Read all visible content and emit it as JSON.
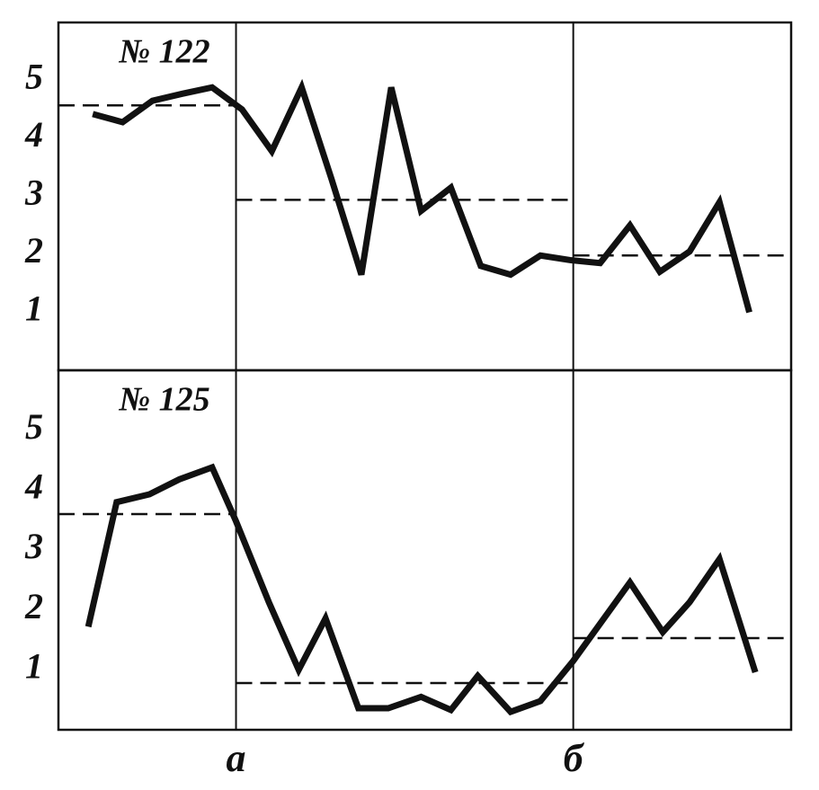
{
  "chart_data": [
    {
      "type": "line",
      "title": "№ 122",
      "x": [
        1,
        2,
        3,
        4,
        5,
        6,
        7,
        8,
        9,
        10,
        11,
        12,
        13,
        14,
        15,
        16,
        17,
        18,
        19,
        20,
        21,
        22,
        23
      ],
      "values": [
        4.42,
        4.28,
        4.65,
        4.77,
        4.88,
        4.5,
        3.78,
        4.88,
        3.3,
        1.65,
        4.88,
        2.75,
        3.15,
        1.8,
        1.65,
        1.98,
        1.9,
        1.85,
        2.5,
        1.7,
        2.05,
        2.9,
        1.0
      ],
      "color": "#111111",
      "means": [
        {
          "value": 4.57,
          "xrange": [
            -0.15,
            5.8
          ]
        },
        {
          "value": 2.94,
          "xrange": [
            5.8,
            17.1
          ]
        },
        {
          "value": 1.98,
          "xrange": [
            17.1,
            24.4
          ]
        }
      ],
      "xlim": [
        -0.15,
        24.4
      ],
      "ylim": [
        0,
        6
      ],
      "yticks": [
        1,
        2,
        3,
        4,
        5
      ]
    },
    {
      "type": "line",
      "title": "№ 125",
      "x": [
        0.85,
        1.8,
        2.9,
        3.9,
        5.0,
        5.8,
        6.9,
        7.9,
        8.8,
        9.9,
        10.9,
        12.0,
        13.0,
        13.9,
        15.0,
        16.0,
        17.1,
        19.0,
        20.1,
        21.0,
        22.0,
        23.2
      ],
      "values": [
        1.72,
        3.8,
        3.93,
        4.18,
        4.38,
        3.48,
        2.13,
        1.0,
        1.86,
        0.36,
        0.36,
        0.55,
        0.33,
        0.9,
        0.3,
        0.48,
        1.15,
        2.46,
        1.63,
        2.13,
        2.85,
        0.96
      ],
      "color": "#111111",
      "means": [
        {
          "value": 3.6,
          "xrange": [
            -0.15,
            5.8
          ]
        },
        {
          "value": 0.78,
          "xrange": [
            5.8,
            17.1
          ]
        },
        {
          "value": 1.53,
          "xrange": [
            17.1,
            24.4
          ]
        }
      ],
      "xlim": [
        -0.15,
        24.4
      ],
      "ylim": [
        0,
        6
      ],
      "yticks": [
        1,
        2,
        3,
        4,
        5
      ]
    }
  ],
  "x_markers": [
    {
      "value": 5.8,
      "label": "a"
    },
    {
      "value": 17.1,
      "label": "б"
    }
  ]
}
